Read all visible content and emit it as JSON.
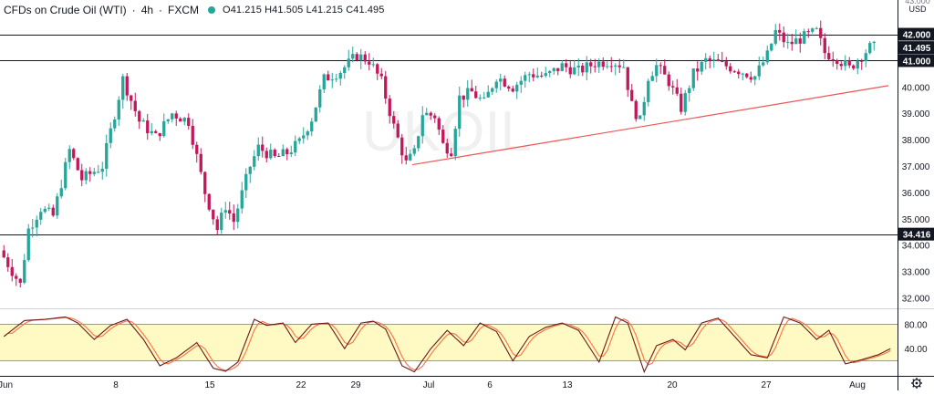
{
  "header": {
    "symbol_title": "CFDs on Crude Oil (WTI)",
    "interval": "4h",
    "source": "FXCM",
    "status_color": "#26a69a",
    "ohlc": {
      "open": "O41.215",
      "high": "H41.505",
      "low": "L41.215",
      "close": "C41.495"
    }
  },
  "price_axis": {
    "currency": "USD",
    "top_partial": "43.000"
  },
  "colors": {
    "bull": "#26a69a",
    "bear": "#c2185b",
    "trendline": "#f05454",
    "stoch_k": "#6a1b1b",
    "stoch_d": "#ff7043",
    "band": "#fff9c4"
  },
  "chart_data": [
    {
      "type": "candlestick",
      "ylim": [
        31.6,
        43.3
      ],
      "y_ticks": [
        "42.000",
        "41.000",
        "40.000",
        "39.000",
        "38.000",
        "37.000",
        "36.000",
        "35.000",
        "34.000",
        "33.000",
        "32.000"
      ],
      "y_tick_values": [
        42,
        41,
        40,
        39,
        38,
        37,
        36,
        35,
        34,
        33,
        32
      ],
      "x_ticks": [
        "Jun",
        "8",
        "15",
        "22",
        "29",
        "Jul",
        "6",
        "13",
        "20",
        "27",
        "Aug"
      ],
      "horizontal_levels": [
        {
          "value": 42.0,
          "label": "42.000",
          "style": "dark"
        },
        {
          "value": 41.0,
          "label": "41.000",
          "style": "dark"
        },
        {
          "value": 34.416,
          "label": "34.416",
          "style": "dark"
        }
      ],
      "last_price": {
        "value": 41.495,
        "label": "41.495"
      },
      "trendline": {
        "from": {
          "bar": 100,
          "value": 37.05
        },
        "to": {
          "bar": 216,
          "value": 40.05
        }
      },
      "waypoints": [
        [
          0,
          33.8
        ],
        [
          5,
          32.5
        ],
        [
          7,
          34.6
        ],
        [
          10,
          35.4
        ],
        [
          13,
          35.1
        ],
        [
          17,
          37.6
        ],
        [
          20,
          36.5
        ],
        [
          25,
          37.0
        ],
        [
          30,
          40.3
        ],
        [
          34,
          38.7
        ],
        [
          38,
          38.1
        ],
        [
          42,
          39.0
        ],
        [
          46,
          38.7
        ],
        [
          50,
          36.0
        ],
        [
          53,
          34.6
        ],
        [
          55,
          35.5
        ],
        [
          57,
          34.9
        ],
        [
          61,
          37.0
        ],
        [
          63,
          37.7
        ],
        [
          67,
          37.3
        ],
        [
          70,
          37.5
        ],
        [
          73,
          37.9
        ],
        [
          76,
          38.8
        ],
        [
          79,
          40.3
        ],
        [
          83,
          40.6
        ],
        [
          87,
          41.2
        ],
        [
          90,
          41.0
        ],
        [
          93,
          40.2
        ],
        [
          96,
          38.5
        ],
        [
          99,
          37.1
        ],
        [
          101,
          37.5
        ],
        [
          103,
          39.0
        ],
        [
          106,
          38.9
        ],
        [
          108,
          37.8
        ],
        [
          110,
          37.6
        ],
        [
          112,
          39.6
        ],
        [
          115,
          39.8
        ],
        [
          118,
          39.4
        ],
        [
          121,
          40.4
        ],
        [
          125,
          40.0
        ],
        [
          129,
          40.5
        ],
        [
          133,
          40.4
        ],
        [
          137,
          40.8
        ],
        [
          141,
          40.6
        ],
        [
          145,
          40.9
        ],
        [
          149,
          41.0
        ],
        [
          152,
          40.8
        ],
        [
          154,
          39.3
        ],
        [
          156,
          38.7
        ],
        [
          158,
          40.4
        ],
        [
          160,
          40.8
        ],
        [
          163,
          40.2
        ],
        [
          166,
          39.2
        ],
        [
          169,
          40.5
        ],
        [
          172,
          41.0
        ],
        [
          175,
          40.9
        ],
        [
          179,
          40.7
        ],
        [
          184,
          40.4
        ],
        [
          187,
          41.2
        ],
        [
          189,
          42.1
        ],
        [
          192,
          41.6
        ],
        [
          196,
          41.9
        ],
        [
          199,
          42.1
        ],
        [
          201,
          41.3
        ],
        [
          204,
          41.1
        ],
        [
          207,
          40.7
        ],
        [
          210,
          41.2
        ],
        [
          212,
          41.5
        ]
      ]
    },
    {
      "type": "line",
      "name": "stochastic",
      "y_ticks": [
        "80.00",
        "40.00"
      ],
      "y_tick_values": [
        80,
        40
      ],
      "ylim": [
        0,
        100
      ],
      "band": [
        20,
        80
      ],
      "k_waypoints": [
        [
          0,
          60
        ],
        [
          5,
          86
        ],
        [
          10,
          88
        ],
        [
          15,
          92
        ],
        [
          18,
          82
        ],
        [
          22,
          55
        ],
        [
          26,
          78
        ],
        [
          30,
          88
        ],
        [
          34,
          55
        ],
        [
          38,
          12
        ],
        [
          42,
          25
        ],
        [
          47,
          50
        ],
        [
          51,
          8
        ],
        [
          54,
          3
        ],
        [
          57,
          18
        ],
        [
          61,
          88
        ],
        [
          64,
          78
        ],
        [
          68,
          82
        ],
        [
          71,
          50
        ],
        [
          75,
          80
        ],
        [
          79,
          82
        ],
        [
          83,
          40
        ],
        [
          87,
          82
        ],
        [
          90,
          85
        ],
        [
          93,
          72
        ],
        [
          97,
          12
        ],
        [
          100,
          2
        ],
        [
          104,
          40
        ],
        [
          108,
          70
        ],
        [
          112,
          45
        ],
        [
          116,
          82
        ],
        [
          120,
          68
        ],
        [
          124,
          20
        ],
        [
          128,
          60
        ],
        [
          132,
          75
        ],
        [
          136,
          82
        ],
        [
          140,
          70
        ],
        [
          145,
          18
        ],
        [
          149,
          92
        ],
        [
          152,
          82
        ],
        [
          156,
          2
        ],
        [
          159,
          45
        ],
        [
          163,
          55
        ],
        [
          166,
          38
        ],
        [
          170,
          82
        ],
        [
          174,
          90
        ],
        [
          178,
          60
        ],
        [
          182,
          30
        ],
        [
          186,
          25
        ],
        [
          190,
          92
        ],
        [
          194,
          82
        ],
        [
          198,
          55
        ],
        [
          201,
          70
        ],
        [
          205,
          15
        ],
        [
          209,
          22
        ],
        [
          213,
          30
        ],
        [
          216,
          40
        ]
      ]
    }
  ]
}
